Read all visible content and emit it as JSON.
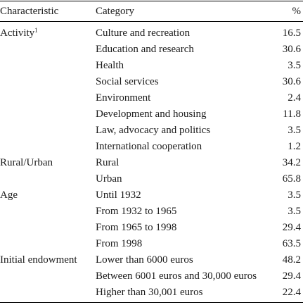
{
  "header": {
    "characteristic": "Characteristic",
    "category": "Category",
    "percent": "%"
  },
  "rows": [
    {
      "characteristic": "Activity",
      "footnote": "1",
      "category": "Culture and recreation",
      "value": "16.5"
    },
    {
      "characteristic": "",
      "category": "Education and research",
      "value": "30.6"
    },
    {
      "characteristic": "",
      "category": "Health",
      "value": "3.5"
    },
    {
      "characteristic": "",
      "category": "Social services",
      "value": "30.6"
    },
    {
      "characteristic": "",
      "category": "Environment",
      "value": "2.4"
    },
    {
      "characteristic": "",
      "category": "Development and housing",
      "value": "11.8"
    },
    {
      "characteristic": "",
      "category": "Law, advocacy and politics",
      "value": "3.5"
    },
    {
      "characteristic": "",
      "category": "International cooperation",
      "value": "1.2"
    },
    {
      "characteristic": "Rural/Urban",
      "category": "Rural",
      "value": "34.2"
    },
    {
      "characteristic": "",
      "category": "Urban",
      "value": "65.8"
    },
    {
      "characteristic": "Age",
      "category": "Until 1932",
      "value": "3.5"
    },
    {
      "characteristic": "",
      "category": "From 1932 to 1965",
      "value": "3.5"
    },
    {
      "characteristic": "",
      "category": "From 1965 to 1998",
      "value": "29.4"
    },
    {
      "characteristic": "",
      "category": "From 1998",
      "value": "63.5"
    },
    {
      "characteristic": "Initial endowment",
      "category": "Lower than 6000 euros",
      "value": "48.2"
    },
    {
      "characteristic": "",
      "category": "Between 6001 euros and 30,000 euros",
      "value": "29.4"
    },
    {
      "characteristic": "",
      "category": "Higher than 30,001 euros",
      "value": "22.4"
    }
  ]
}
